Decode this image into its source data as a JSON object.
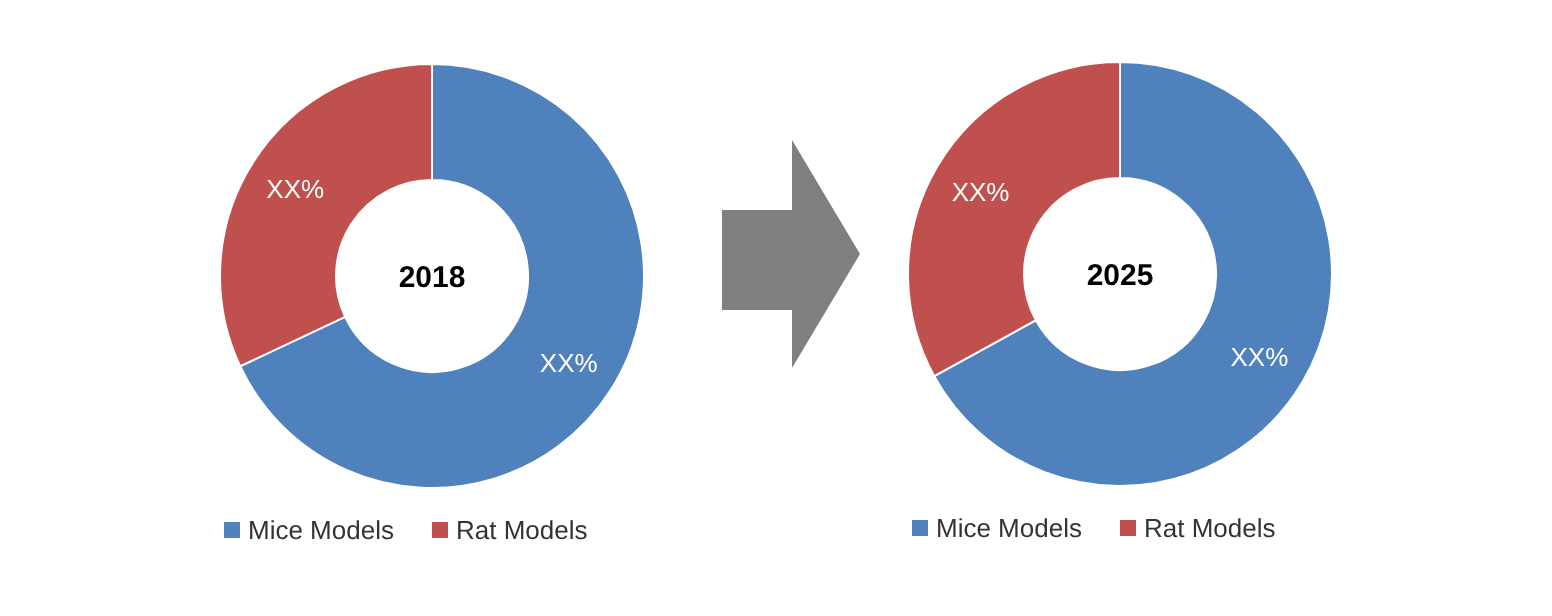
{
  "chart_data": [
    {
      "type": "donut",
      "title": "2018",
      "categories": [
        "Mice Models",
        "Rat Models"
      ],
      "values": [
        68,
        32
      ],
      "colors": [
        "#4f81bd",
        "#c0504d"
      ],
      "value_labels": [
        "XX%",
        "XX%"
      ],
      "legend": "bottom"
    },
    {
      "type": "donut",
      "title": "2025",
      "categories": [
        "Mice Models",
        "Rat Models"
      ],
      "values": [
        67,
        33
      ],
      "colors": [
        "#4f81bd",
        "#c0504d"
      ],
      "value_labels": [
        "XX%",
        "XX%"
      ],
      "legend": "bottom"
    }
  ]
}
